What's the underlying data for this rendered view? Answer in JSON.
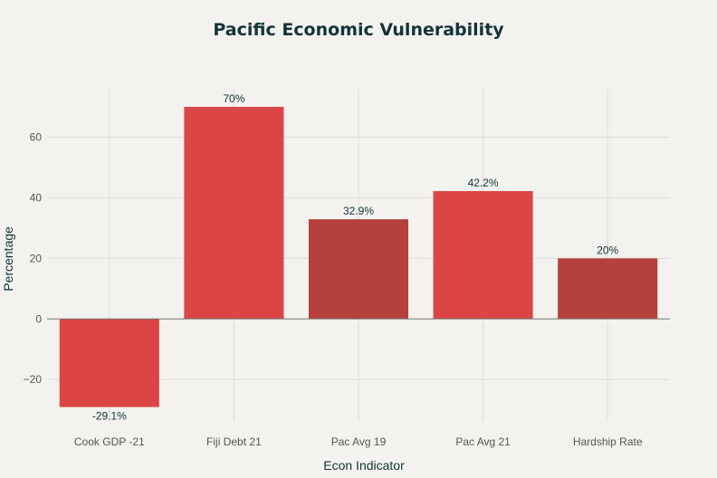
{
  "chart_data": {
    "type": "bar",
    "title": "Pacific Economic Vulnerability",
    "xlabel": "Econ Indicator",
    "ylabel": "Percentage",
    "categories": [
      "Cook GDP -21",
      "Fiji Debt 21",
      "Pac Avg 19",
      "Pac Avg 21",
      "Hardship Rate"
    ],
    "values": [
      -29.1,
      70,
      32.9,
      42.2,
      20
    ],
    "data_labels": [
      "-29.1%",
      "70%",
      "32.9%",
      "42.2%",
      "20%"
    ],
    "bar_colors": [
      "#db4545",
      "#db4545",
      "#b4413c",
      "#db4545",
      "#b4413c"
    ],
    "ylim": [
      -34,
      76
    ],
    "yticks": [
      -20,
      0,
      20,
      40,
      60
    ],
    "ytick_labels": [
      "−20",
      "0",
      "20",
      "40",
      "60"
    ],
    "grid": true,
    "legend": "none"
  }
}
